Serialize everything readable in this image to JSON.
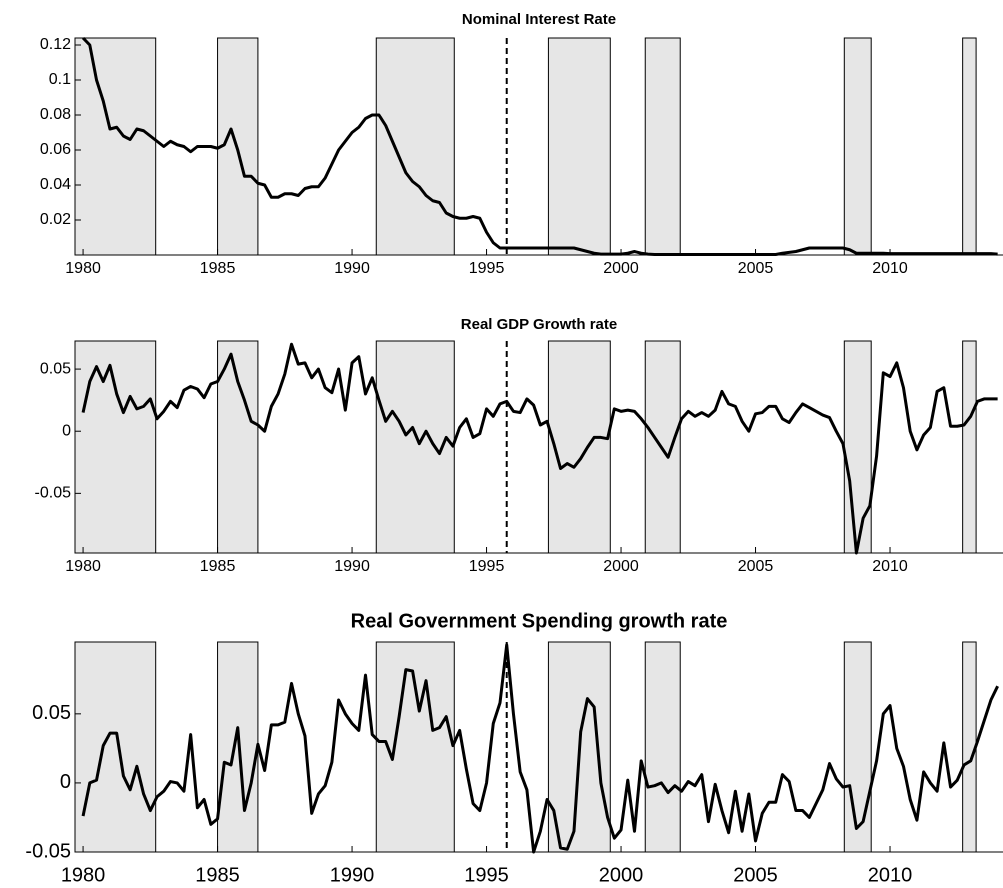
{
  "chart_data": [
    {
      "type": "line",
      "title": "Nominal Interest Rate",
      "color": "#000000",
      "xlim": [
        1979.7,
        2014.2
      ],
      "ylim": [
        0,
        0.124
      ],
      "xticks": [
        1980,
        1985,
        1990,
        1995,
        2000,
        2005,
        2010
      ],
      "yticks": [
        0.02,
        0.04,
        0.06,
        0.08,
        0.1,
        0.12
      ],
      "shaded_regions": [
        [
          1979.7,
          1982.7
        ],
        [
          1985.0,
          1986.5
        ],
        [
          1990.9,
          1993.8
        ],
        [
          1997.3,
          1999.6
        ],
        [
          2000.9,
          2002.2
        ],
        [
          2008.3,
          2009.3
        ],
        [
          2012.7,
          2013.2
        ]
      ],
      "vline": 1995.75,
      "x": [
        1980,
        1980.25,
        1980.5,
        1980.75,
        1981,
        1981.25,
        1981.5,
        1981.75,
        1982,
        1982.25,
        1982.5,
        1982.75,
        1983,
        1983.25,
        1983.5,
        1983.75,
        1984,
        1984.25,
        1984.5,
        1984.75,
        1985,
        1985.25,
        1985.5,
        1985.75,
        1986,
        1986.25,
        1986.5,
        1986.75,
        1987,
        1987.25,
        1987.5,
        1987.75,
        1988,
        1988.25,
        1988.5,
        1988.75,
        1989,
        1989.25,
        1989.5,
        1989.75,
        1990,
        1990.25,
        1990.5,
        1990.75,
        1991,
        1991.25,
        1991.5,
        1991.75,
        1992,
        1992.25,
        1992.5,
        1992.75,
        1993,
        1993.25,
        1993.5,
        1993.75,
        1994,
        1994.25,
        1994.5,
        1994.75,
        1995,
        1995.25,
        1995.5,
        1995.75,
        1996,
        1996.25,
        1996.5,
        1996.75,
        1997,
        1997.25,
        1997.5,
        1997.75,
        1998,
        1998.25,
        1998.5,
        1998.75,
        1999,
        1999.25,
        1999.5,
        1999.75,
        2000,
        2000.25,
        2000.5,
        2000.75,
        2001,
        2001.25,
        2001.5,
        2001.75,
        2002,
        2002.25,
        2002.5,
        2002.75,
        2003,
        2003.25,
        2003.5,
        2003.75,
        2004,
        2004.25,
        2004.5,
        2004.75,
        2005,
        2005.25,
        2005.5,
        2005.75,
        2006,
        2006.25,
        2006.5,
        2006.75,
        2007,
        2007.25,
        2007.5,
        2007.75,
        2008,
        2008.25,
        2008.5,
        2008.75,
        2009,
        2009.25,
        2009.5,
        2009.75,
        2010,
        2010.25,
        2010.5,
        2010.75,
        2011,
        2011.25,
        2011.5,
        2011.75,
        2012,
        2012.25,
        2012.5,
        2012.75,
        2013,
        2013.25,
        2013.5,
        2013.75,
        2014
      ],
      "values": [
        0.124,
        0.12,
        0.1,
        0.088,
        0.072,
        0.073,
        0.068,
        0.066,
        0.072,
        0.071,
        0.068,
        0.065,
        0.062,
        0.065,
        0.063,
        0.062,
        0.059,
        0.062,
        0.062,
        0.062,
        0.061,
        0.063,
        0.072,
        0.06,
        0.045,
        0.045,
        0.041,
        0.04,
        0.033,
        0.033,
        0.035,
        0.035,
        0.034,
        0.038,
        0.039,
        0.039,
        0.044,
        0.052,
        0.06,
        0.065,
        0.07,
        0.073,
        0.078,
        0.08,
        0.08,
        0.074,
        0.065,
        0.056,
        0.047,
        0.042,
        0.039,
        0.034,
        0.031,
        0.03,
        0.024,
        0.022,
        0.021,
        0.021,
        0.022,
        0.021,
        0.013,
        0.007,
        0.004,
        0.004,
        0.004,
        0.004,
        0.004,
        0.004,
        0.004,
        0.004,
        0.004,
        0.004,
        0.004,
        0.004,
        0.003,
        0.002,
        0.001,
        0.0005,
        0.0005,
        0.0005,
        0.0005,
        0.001,
        0.002,
        0.001,
        0.0005,
        0.0003,
        0.0003,
        0.0003,
        0.0003,
        0.0003,
        0.0003,
        0.0003,
        0.0003,
        0.0003,
        0.0003,
        0.0003,
        0.0003,
        0.0003,
        0.0003,
        0.0003,
        0.0003,
        0.0003,
        0.0003,
        0.0003,
        0.001,
        0.0015,
        0.002,
        0.003,
        0.004,
        0.004,
        0.004,
        0.004,
        0.004,
        0.004,
        0.003,
        0.001,
        0.001,
        0.001,
        0.001,
        0.001,
        0.0008,
        0.0008,
        0.0008,
        0.0008,
        0.0008,
        0.0008,
        0.0008,
        0.0008,
        0.0008,
        0.0008,
        0.0008,
        0.0008,
        0.0008,
        0.0008,
        0.0008,
        0.0008,
        0.0005
      ]
    },
    {
      "type": "line",
      "title": "Real GDP Growth rate",
      "color": "#000000",
      "xlim": [
        1979.7,
        2014.2
      ],
      "ylim": [
        -0.098,
        0.0726
      ],
      "xticks": [
        1980,
        1985,
        1990,
        1995,
        2000,
        2005,
        2010
      ],
      "yticks": [
        -0.05,
        0,
        0.05
      ],
      "shaded_regions": [
        [
          1979.7,
          1982.7
        ],
        [
          1985.0,
          1986.5
        ],
        [
          1990.9,
          1993.8
        ],
        [
          1997.3,
          1999.6
        ],
        [
          2000.9,
          2002.2
        ],
        [
          2008.3,
          2009.3
        ],
        [
          2012.7,
          2013.2
        ]
      ],
      "vline": 1995.75,
      "x": [
        1980,
        1980.25,
        1980.5,
        1980.75,
        1981,
        1981.25,
        1981.5,
        1981.75,
        1982,
        1982.25,
        1982.5,
        1982.75,
        1983,
        1983.25,
        1983.5,
        1983.75,
        1984,
        1984.25,
        1984.5,
        1984.75,
        1985,
        1985.25,
        1985.5,
        1985.75,
        1986,
        1986.25,
        1986.5,
        1986.75,
        1987,
        1987.25,
        1987.5,
        1987.75,
        1988,
        1988.25,
        1988.5,
        1988.75,
        1989,
        1989.25,
        1989.5,
        1989.75,
        1990,
        1990.25,
        1990.5,
        1990.75,
        1991,
        1991.25,
        1991.5,
        1991.75,
        1992,
        1992.25,
        1992.5,
        1992.75,
        1993,
        1993.25,
        1993.5,
        1993.75,
        1994,
        1994.25,
        1994.5,
        1994.75,
        1995,
        1995.25,
        1995.5,
        1995.75,
        1996,
        1996.25,
        1996.5,
        1996.75,
        1997,
        1997.25,
        1997.5,
        1997.75,
        1998,
        1998.25,
        1998.5,
        1998.75,
        1999,
        1999.25,
        1999.5,
        1999.75,
        2000,
        2000.25,
        2000.5,
        2000.75,
        2001,
        2001.25,
        2001.5,
        2001.75,
        2002,
        2002.25,
        2002.5,
        2002.75,
        2003,
        2003.25,
        2003.5,
        2003.75,
        2004,
        2004.25,
        2004.5,
        2004.75,
        2005,
        2005.25,
        2005.5,
        2005.75,
        2006,
        2006.25,
        2006.5,
        2006.75,
        2007,
        2007.25,
        2007.5,
        2007.75,
        2008,
        2008.25,
        2008.5,
        2008.75,
        2009,
        2009.25,
        2009.5,
        2009.75,
        2010,
        2010.25,
        2010.5,
        2010.75,
        2011,
        2011.25,
        2011.5,
        2011.75,
        2012,
        2012.25,
        2012.5,
        2012.75,
        2013,
        2013.25,
        2013.5,
        2013.75,
        2014
      ],
      "values": [
        0.015,
        0.04,
        0.052,
        0.04,
        0.053,
        0.03,
        0.015,
        0.028,
        0.018,
        0.02,
        0.026,
        0.01,
        0.016,
        0.024,
        0.019,
        0.033,
        0.036,
        0.034,
        0.027,
        0.038,
        0.04,
        0.05,
        0.062,
        0.04,
        0.025,
        0.008,
        0.005,
        0.0,
        0.02,
        0.03,
        0.046,
        0.07,
        0.054,
        0.055,
        0.043,
        0.05,
        0.035,
        0.031,
        0.05,
        0.017,
        0.055,
        0.06,
        0.03,
        0.043,
        0.025,
        0.008,
        0.016,
        0.008,
        -0.003,
        0.003,
        -0.01,
        0.0,
        -0.01,
        -0.018,
        -0.005,
        -0.012,
        0.003,
        0.01,
        -0.005,
        -0.002,
        0.018,
        0.012,
        0.022,
        0.024,
        0.016,
        0.015,
        0.026,
        0.021,
        0.005,
        0.008,
        -0.01,
        -0.03,
        -0.026,
        -0.029,
        -0.022,
        -0.013,
        -0.005,
        -0.005,
        -0.006,
        0.018,
        0.016,
        0.017,
        0.016,
        0.01,
        0.003,
        -0.005,
        -0.013,
        -0.021,
        -0.005,
        0.01,
        0.016,
        0.012,
        0.015,
        0.012,
        0.017,
        0.032,
        0.022,
        0.02,
        0.008,
        0.0,
        0.014,
        0.015,
        0.02,
        0.02,
        0.01,
        0.007,
        0.015,
        0.022,
        0.019,
        0.016,
        0.013,
        0.011,
        0.0,
        -0.01,
        -0.04,
        -0.098,
        -0.07,
        -0.06,
        -0.02,
        0.047,
        0.044,
        0.055,
        0.035,
        0.0,
        -0.015,
        -0.003,
        0.003,
        0.032,
        0.035,
        0.004,
        0.004,
        0.005,
        0.012,
        0.024,
        0.026,
        0.026,
        0.026
      ]
    },
    {
      "type": "line",
      "title": "Real Government Spending growth rate",
      "color": "#000000",
      "xlim": [
        1979.7,
        2014.2
      ],
      "ylim": [
        -0.05,
        0.102
      ],
      "xticks": [
        1980,
        1985,
        1990,
        1995,
        2000,
        2005,
        2010
      ],
      "yticks": [
        -0.05,
        0,
        0.05
      ],
      "shaded_regions": [
        [
          1979.7,
          1982.7
        ],
        [
          1985.0,
          1986.5
        ],
        [
          1990.9,
          1993.8
        ],
        [
          1997.3,
          1999.6
        ],
        [
          2000.9,
          2002.2
        ],
        [
          2008.3,
          2009.3
        ],
        [
          2012.7,
          2013.2
        ]
      ],
      "vline": 1995.75,
      "x": [
        1980,
        1980.25,
        1980.5,
        1980.75,
        1981,
        1981.25,
        1981.5,
        1981.75,
        1982,
        1982.25,
        1982.5,
        1982.75,
        1983,
        1983.25,
        1983.5,
        1983.75,
        1984,
        1984.25,
        1984.5,
        1984.75,
        1985,
        1985.25,
        1985.5,
        1985.75,
        1986,
        1986.25,
        1986.5,
        1986.75,
        1987,
        1987.25,
        1987.5,
        1987.75,
        1988,
        1988.25,
        1988.5,
        1988.75,
        1989,
        1989.25,
        1989.5,
        1989.75,
        1990,
        1990.25,
        1990.5,
        1990.75,
        1991,
        1991.25,
        1991.5,
        1991.75,
        1992,
        1992.25,
        1992.5,
        1992.75,
        1993,
        1993.25,
        1993.5,
        1993.75,
        1994,
        1994.25,
        1994.5,
        1994.75,
        1995,
        1995.25,
        1995.5,
        1995.75,
        1996,
        1996.25,
        1996.5,
        1996.75,
        1997,
        1997.25,
        1997.5,
        1997.75,
        1998,
        1998.25,
        1998.5,
        1998.75,
        1999,
        1999.25,
        1999.5,
        1999.75,
        2000,
        2000.25,
        2000.5,
        2000.75,
        2001,
        2001.25,
        2001.5,
        2001.75,
        2002,
        2002.25,
        2002.5,
        2002.75,
        2003,
        2003.25,
        2003.5,
        2003.75,
        2004,
        2004.25,
        2004.5,
        2004.75,
        2005,
        2005.25,
        2005.5,
        2005.75,
        2006,
        2006.25,
        2006.5,
        2006.75,
        2007,
        2007.25,
        2007.5,
        2007.75,
        2008,
        2008.25,
        2008.5,
        2008.75,
        2009,
        2009.25,
        2009.5,
        2009.75,
        2010,
        2010.25,
        2010.5,
        2010.75,
        2011,
        2011.25,
        2011.5,
        2011.75,
        2012,
        2012.25,
        2012.5,
        2012.75,
        2013,
        2013.25,
        2013.5,
        2013.75,
        2014
      ],
      "values": [
        -0.024,
        0.0,
        0.002,
        0.027,
        0.036,
        0.036,
        0.005,
        -0.005,
        0.012,
        -0.008,
        -0.02,
        -0.01,
        -0.006,
        0.001,
        0.0,
        -0.006,
        0.035,
        -0.018,
        -0.012,
        -0.03,
        -0.026,
        0.015,
        0.013,
        0.04,
        -0.02,
        0.0,
        0.028,
        0.009,
        0.042,
        0.042,
        0.044,
        0.072,
        0.05,
        0.034,
        -0.022,
        -0.008,
        -0.002,
        0.015,
        0.06,
        0.05,
        0.043,
        0.038,
        0.078,
        0.035,
        0.03,
        0.03,
        0.017,
        0.048,
        0.082,
        0.081,
        0.052,
        0.074,
        0.038,
        0.04,
        0.048,
        0.027,
        0.038,
        0.01,
        -0.015,
        -0.02,
        0.0,
        0.043,
        0.058,
        0.1,
        0.05,
        0.008,
        -0.005,
        -0.05,
        -0.035,
        -0.012,
        -0.02,
        -0.047,
        -0.048,
        -0.035,
        0.037,
        0.061,
        0.055,
        0.0,
        -0.025,
        -0.04,
        -0.034,
        0.002,
        -0.035,
        0.016,
        -0.003,
        -0.002,
        0.0,
        -0.007,
        -0.002,
        -0.006,
        0.001,
        -0.002,
        0.006,
        -0.028,
        -0.001,
        -0.02,
        -0.036,
        -0.006,
        -0.035,
        -0.008,
        -0.042,
        -0.022,
        -0.014,
        -0.014,
        0.006,
        0.001,
        -0.02,
        -0.02,
        -0.025,
        -0.015,
        -0.005,
        0.014,
        0.003,
        -0.003,
        -0.002,
        -0.033,
        -0.028,
        -0.006,
        0.016,
        0.05,
        0.056,
        0.025,
        0.012,
        -0.012,
        -0.027,
        0.008,
        0.0,
        -0.006,
        0.029,
        -0.003,
        0.002,
        0.013,
        0.016,
        0.03,
        0.045,
        0.06,
        0.07
      ]
    }
  ]
}
